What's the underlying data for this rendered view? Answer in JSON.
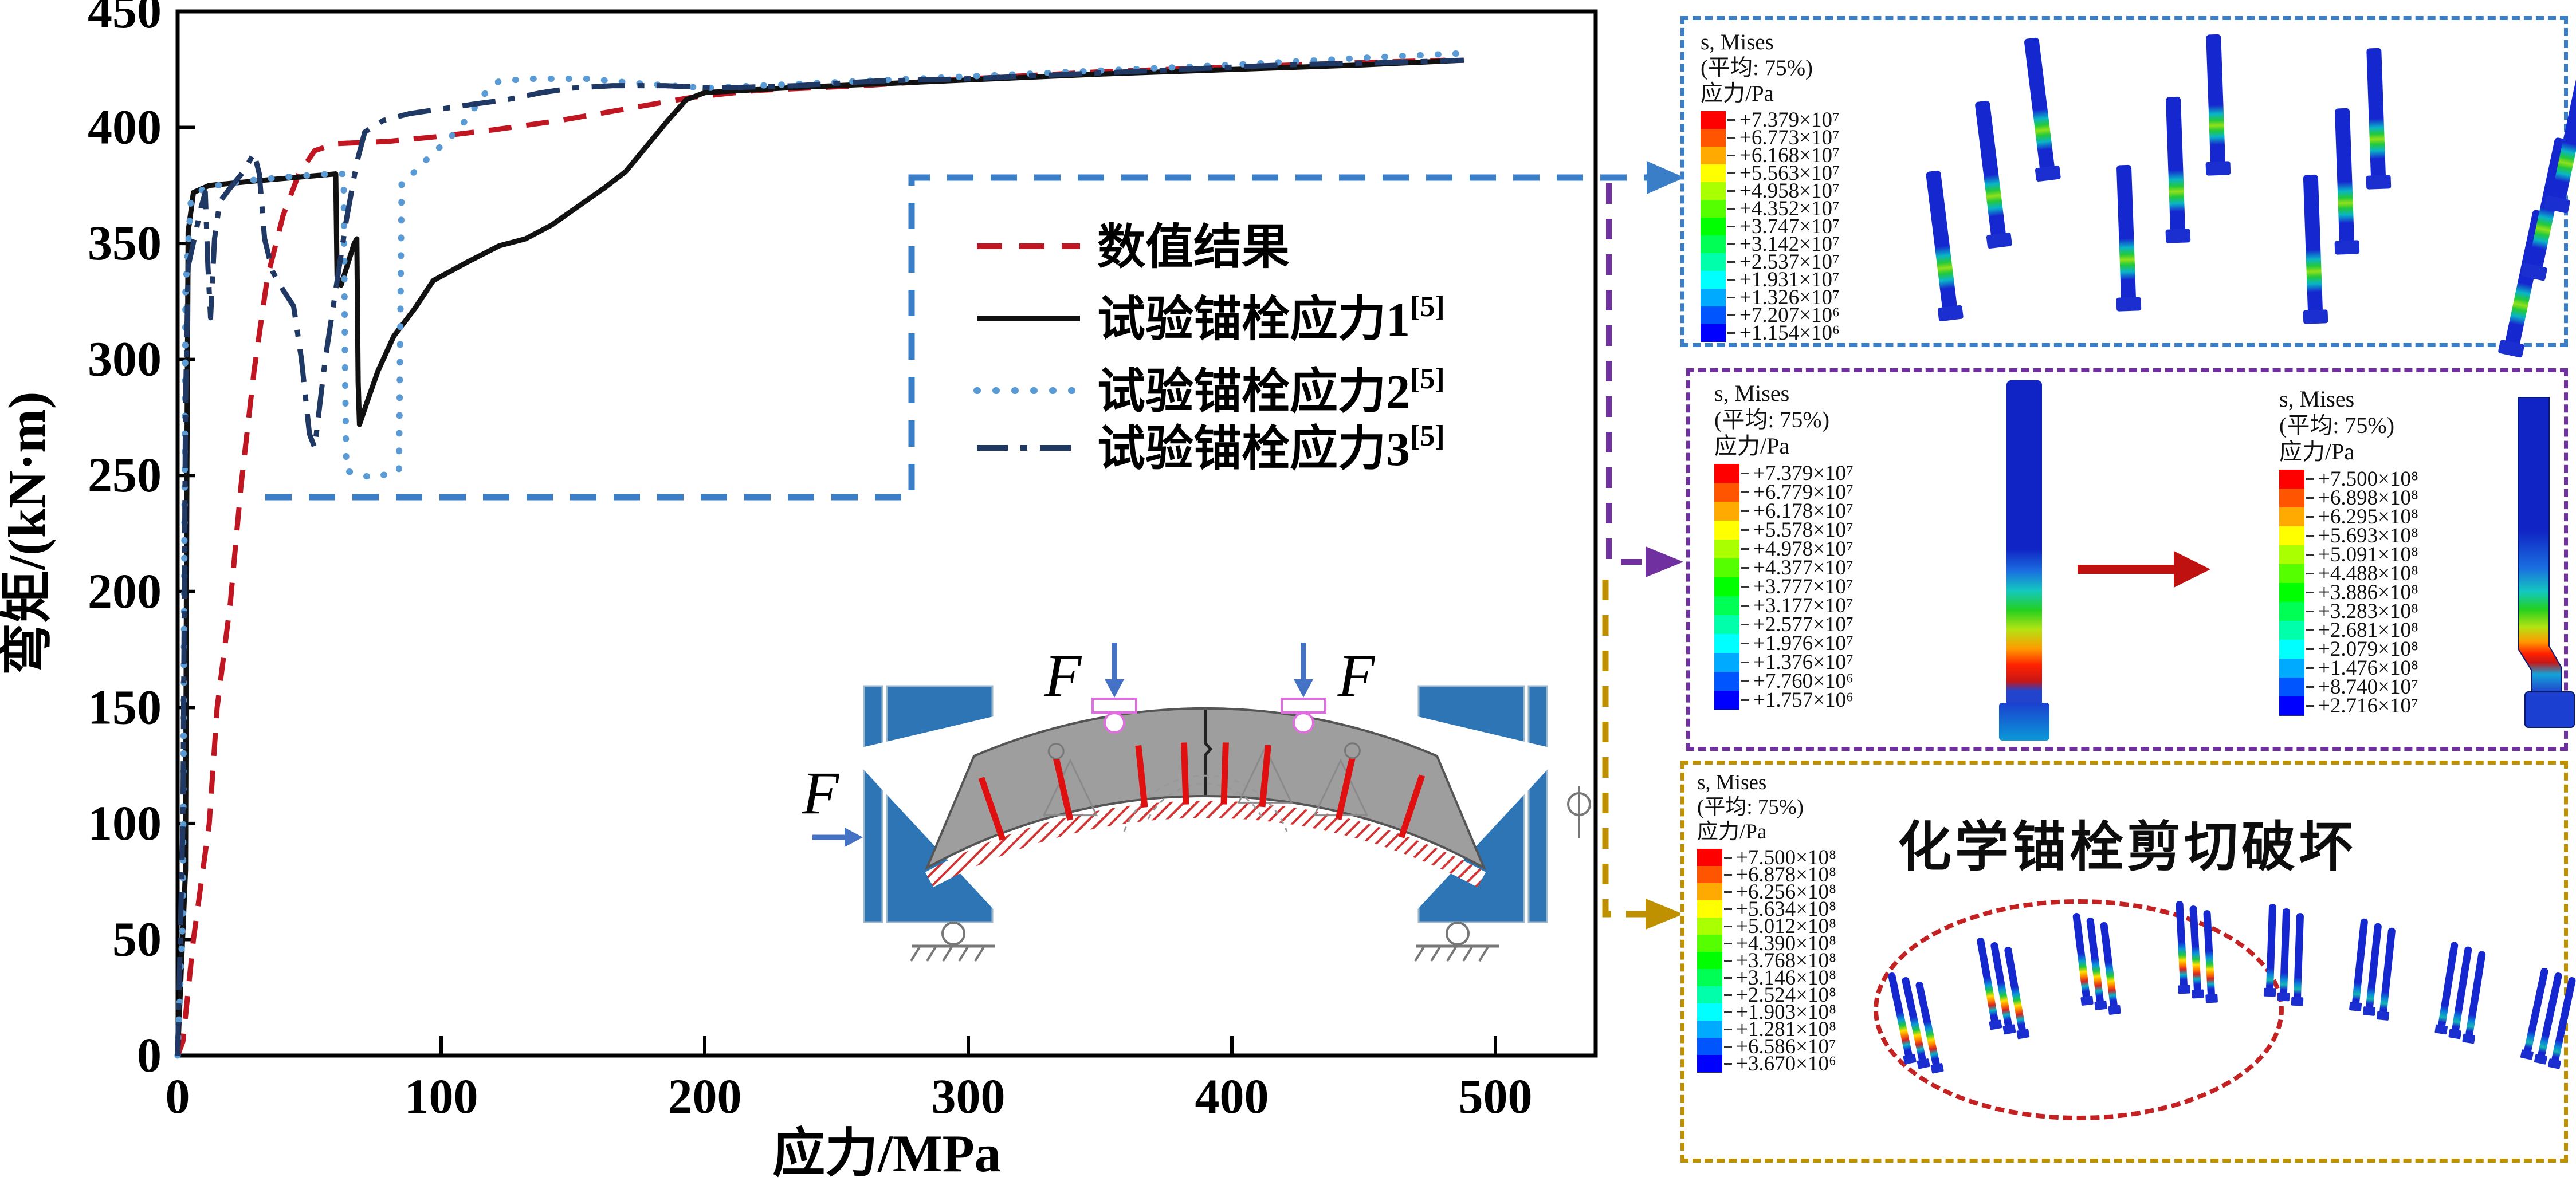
{
  "chart_data": {
    "type": "line",
    "title": "",
    "xlabel": "应力/MPa",
    "ylabel": "弯矩/(kN·m)",
    "xlim": [
      0,
      538
    ],
    "ylim": [
      0,
      450
    ],
    "xticks": [
      0,
      100,
      200,
      300,
      400,
      500
    ],
    "yticks": [
      0,
      50,
      100,
      150,
      200,
      250,
      300,
      350,
      400,
      450
    ],
    "grid": false,
    "legend_position": "inside-upper-middle",
    "series": [
      {
        "name": "数值结果",
        "sup": "",
        "color": "#c01622",
        "style": "dashed",
        "points": [
          [
            0,
            0
          ],
          [
            2,
            6
          ],
          [
            6,
            50
          ],
          [
            12,
            100
          ],
          [
            15,
            150
          ],
          [
            20,
            195
          ],
          [
            24,
            245
          ],
          [
            29,
            295
          ],
          [
            34,
            335
          ],
          [
            40,
            362
          ],
          [
            46,
            380
          ],
          [
            52,
            390
          ],
          [
            60,
            393
          ],
          [
            80,
            394
          ],
          [
            98,
            396
          ],
          [
            120,
            399
          ],
          [
            145,
            403
          ],
          [
            170,
            408
          ],
          [
            195,
            413
          ],
          [
            220,
            416
          ],
          [
            260,
            418
          ],
          [
            300,
            421
          ],
          [
            350,
            424
          ],
          [
            400,
            426
          ],
          [
            450,
            428
          ],
          [
            481,
            429
          ]
        ]
      },
      {
        "name": "试验锚栓应力1",
        "sup": "[5]",
        "color": "#111111",
        "style": "solid",
        "points": [
          [
            0,
            0
          ],
          [
            3,
            80
          ],
          [
            3.5,
            250
          ],
          [
            4,
            355
          ],
          [
            6,
            372
          ],
          [
            12,
            375
          ],
          [
            30,
            377
          ],
          [
            50,
            379
          ],
          [
            60,
            380
          ],
          [
            60.5,
            336
          ],
          [
            62,
            332
          ],
          [
            67,
            350
          ],
          [
            68,
            352
          ],
          [
            68.5,
            290
          ],
          [
            69,
            272
          ],
          [
            72,
            282
          ],
          [
            76,
            295
          ],
          [
            82,
            310
          ],
          [
            90,
            322
          ],
          [
            97,
            334
          ],
          [
            110,
            342
          ],
          [
            122,
            349
          ],
          [
            132,
            352
          ],
          [
            142,
            358
          ],
          [
            152,
            366
          ],
          [
            162,
            374
          ],
          [
            170,
            381
          ],
          [
            178,
            392
          ],
          [
            186,
            403
          ],
          [
            193,
            412
          ],
          [
            200,
            415
          ],
          [
            230,
            417
          ],
          [
            270,
            419
          ],
          [
            310,
            421
          ],
          [
            350,
            423
          ],
          [
            400,
            425
          ],
          [
            450,
            427
          ],
          [
            488,
            429
          ]
        ]
      },
      {
        "name": "试验锚栓应力2",
        "sup": "[5]",
        "color": "#5b9bd5",
        "style": "dotted",
        "points": [
          [
            0,
            0
          ],
          [
            2,
            60
          ],
          [
            2.5,
            200
          ],
          [
            3,
            330
          ],
          [
            5,
            368
          ],
          [
            10,
            374
          ],
          [
            25,
            377
          ],
          [
            45,
            379
          ],
          [
            58,
            380
          ],
          [
            63,
            380
          ],
          [
            63.5,
            300
          ],
          [
            64,
            252
          ],
          [
            74,
            249
          ],
          [
            84,
            252
          ],
          [
            85,
            376
          ],
          [
            90,
            381
          ],
          [
            96,
            388
          ],
          [
            103,
            395
          ],
          [
            110,
            404
          ],
          [
            116,
            414
          ],
          [
            122,
            420
          ],
          [
            135,
            421
          ],
          [
            155,
            421
          ],
          [
            175,
            419
          ],
          [
            200,
            417
          ],
          [
            240,
            419
          ],
          [
            280,
            421
          ],
          [
            320,
            423
          ],
          [
            360,
            425
          ],
          [
            400,
            427
          ],
          [
            450,
            430
          ],
          [
            488,
            432
          ]
        ]
      },
      {
        "name": "试验锚栓应力3",
        "sup": "[5]",
        "color": "#1f3864",
        "style": "dashdot",
        "points": [
          [
            0,
            0
          ],
          [
            2,
            100
          ],
          [
            3,
            280
          ],
          [
            4,
            340
          ],
          [
            9,
            366
          ],
          [
            10.5,
            372
          ],
          [
            11.5,
            340
          ],
          [
            12.5,
            318
          ],
          [
            14,
            352
          ],
          [
            16,
            368
          ],
          [
            20,
            374
          ],
          [
            25,
            381
          ],
          [
            29,
            389
          ],
          [
            31,
            380
          ],
          [
            33,
            352
          ],
          [
            36,
            338
          ],
          [
            40,
            330
          ],
          [
            44,
            323
          ],
          [
            47,
            300
          ],
          [
            50,
            268
          ],
          [
            52,
            262
          ],
          [
            56,
            300
          ],
          [
            60,
            330
          ],
          [
            64,
            360
          ],
          [
            68,
            385
          ],
          [
            71,
            398
          ],
          [
            78,
            403
          ],
          [
            88,
            406
          ],
          [
            100,
            408
          ],
          [
            112,
            410
          ],
          [
            125,
            412
          ],
          [
            138,
            415
          ],
          [
            150,
            417
          ],
          [
            165,
            418
          ],
          [
            185,
            418
          ],
          [
            205,
            417
          ],
          [
            235,
            418
          ],
          [
            265,
            420
          ],
          [
            300,
            421
          ],
          [
            340,
            423
          ],
          [
            380,
            425
          ],
          [
            420,
            427
          ],
          [
            460,
            428
          ],
          [
            488,
            429
          ]
        ]
      }
    ]
  },
  "inset": {
    "force_label": "F"
  },
  "callouts": {
    "top_color": "#3a7ec8",
    "middle_color": "#7030a0",
    "bottom_color": "#bf9000"
  },
  "panels": {
    "spectrum": [
      "#ff0000",
      "#ff5500",
      "#ffaa00",
      "#ffff00",
      "#aaff00",
      "#55ff00",
      "#00ff00",
      "#00ff55",
      "#00ffaa",
      "#00ffff",
      "#00aaff",
      "#0055ff",
      "#0000ff"
    ],
    "legend_title": "s, Mises\n(平均: 75%)\n应力/Pa",
    "top": {
      "values": [
        "+7.379×10⁷",
        "+6.773×10⁷",
        "+6.168×10⁷",
        "+5.563×10⁷",
        "+4.958×10⁷",
        "+4.352×10⁷",
        "+3.747×10⁷",
        "+3.142×10⁷",
        "+2.537×10⁷",
        "+1.931×10⁷",
        "+1.326×10⁷",
        "+7.207×10⁶",
        "+1.154×10⁶"
      ]
    },
    "middle": {
      "values_left": [
        "+7.379×10⁷",
        "+6.779×10⁷",
        "+6.178×10⁷",
        "+5.578×10⁷",
        "+4.978×10⁷",
        "+4.377×10⁷",
        "+3.777×10⁷",
        "+3.177×10⁷",
        "+2.577×10⁷",
        "+1.976×10⁷",
        "+1.376×10⁷",
        "+7.760×10⁶",
        "+1.757×10⁶"
      ],
      "values_right": [
        "+7.500×10⁸",
        "+6.898×10⁸",
        "+6.295×10⁸",
        "+5.693×10⁸",
        "+5.091×10⁸",
        "+4.488×10⁸",
        "+3.886×10⁸",
        "+3.283×10⁸",
        "+2.681×10⁸",
        "+2.079×10⁸",
        "+1.476×10⁸",
        "+8.740×10⁷",
        "+2.716×10⁷"
      ]
    },
    "bottom": {
      "caption": "化学锚栓剪切破坏",
      "values": [
        "+7.500×10⁸",
        "+6.878×10⁸",
        "+6.256×10⁸",
        "+5.634×10⁸",
        "+5.012×10⁸",
        "+4.390×10⁸",
        "+3.768×10⁸",
        "+3.146×10⁸",
        "+2.524×10⁸",
        "+1.903×10⁸",
        "+1.281×10⁸",
        "+6.586×10⁷",
        "+3.670×10⁶"
      ]
    }
  }
}
